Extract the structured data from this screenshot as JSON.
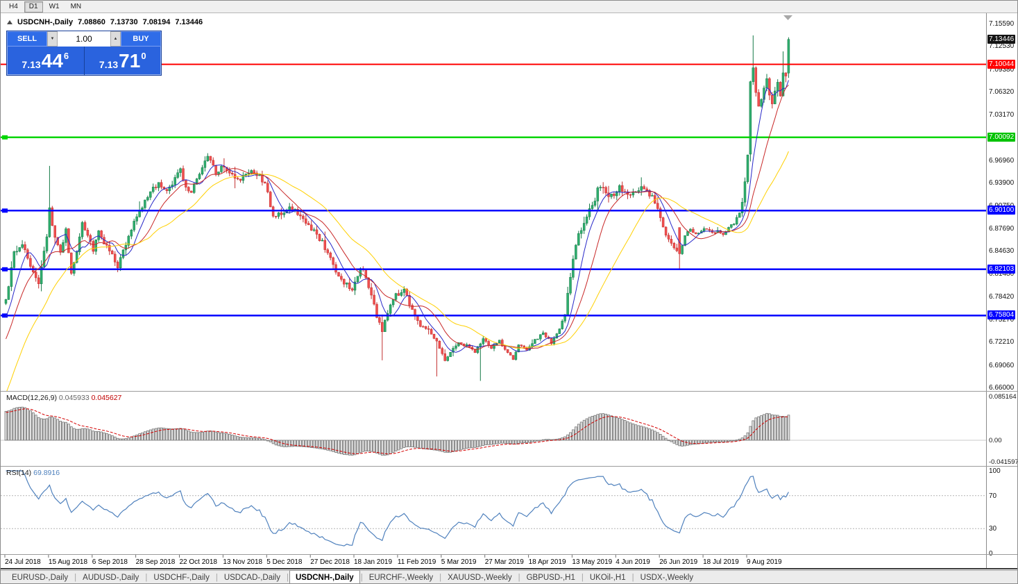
{
  "window_title": "USDCNH-,Daily",
  "toolbar": {
    "timeframes": [
      {
        "label": "H4",
        "active": false
      },
      {
        "label": "D1",
        "active": true
      },
      {
        "label": "W1",
        "active": false
      },
      {
        "label": "MN",
        "active": false
      }
    ]
  },
  "chart_header": {
    "symbol": "USDCNH-,Daily",
    "open": "7.08860",
    "high": "7.13730",
    "low": "7.08194",
    "close": "7.13446"
  },
  "trade_panel": {
    "sell_label": "SELL",
    "buy_label": "BUY",
    "volume": "1.00",
    "sell_price": {
      "prefix": "7.13",
      "big": "44",
      "sup": "6"
    },
    "buy_price": {
      "prefix": "7.13",
      "big": "71",
      "sup": "0"
    }
  },
  "indicators": {
    "macd": {
      "name": "MACD(12,26,9)",
      "value_main": "0.045933",
      "value_signal": "0.045627"
    },
    "rsi": {
      "name": "RSI(14)",
      "value": "69.8916"
    }
  },
  "price_scale": {
    "ticks": [
      "7.15590",
      "7.12530",
      "7.09380",
      "7.06320",
      "7.03170",
      "6.96960",
      "6.93900",
      "6.90750",
      "6.87690",
      "6.84630",
      "6.81480",
      "6.78420",
      "6.75270",
      "6.72210",
      "6.69060",
      "6.66000"
    ],
    "badges": [
      {
        "label": "7.13446",
        "bg": "#141414"
      },
      {
        "label": "7.10044",
        "bg": "#ff0000"
      },
      {
        "label": "7.00092",
        "bg": "#00c300"
      },
      {
        "label": "6.90100",
        "bg": "#0000ff"
      },
      {
        "label": "6.82103",
        "bg": "#0000ff"
      },
      {
        "label": "6.75804",
        "bg": "#0000ff"
      }
    ]
  },
  "macd_scale": {
    "ticks": [
      "0.085164",
      "0.00",
      "-0.041597"
    ]
  },
  "rsi_scale": {
    "ticks": [
      "100",
      "70",
      "30",
      "0"
    ]
  },
  "time_axis": {
    "labels": [
      "24 Jul 2018",
      "15 Aug 2018",
      "6 Sep 2018",
      "28 Sep 2018",
      "22 Oct 2018",
      "13 Nov 2018",
      "5 Dec 2018",
      "27 Dec 2018",
      "18 Jan 2019",
      "11 Feb 2019",
      "5 Mar 2019",
      "27 Mar 2019",
      "18 Apr 2019",
      "13 May 2019",
      "4 Jun 2019",
      "26 Jun 2019",
      "18 Jul 2019",
      "9 Aug 2019"
    ],
    "candles_per_label": 16
  },
  "tabs": [
    {
      "label": "EURUSD-,Daily",
      "active": false
    },
    {
      "label": "AUDUSD-,Daily",
      "active": false
    },
    {
      "label": "USDCHF-,Daily",
      "active": false
    },
    {
      "label": "USDCAD-,Daily",
      "active": false
    },
    {
      "label": "USDCNH-,Daily",
      "active": true
    },
    {
      "label": "EURCHF-,Weekly",
      "active": false
    },
    {
      "label": "XAUUSD-,Weekly",
      "active": false
    },
    {
      "label": "GBPUSD-,H1",
      "active": false
    },
    {
      "label": "UKOil-,H1",
      "active": false
    },
    {
      "label": "USDX-,Weekly",
      "active": false
    }
  ],
  "colors": {
    "bull": "#2fae6e",
    "bull_stroke": "#157a47",
    "bear": "#f04f4f",
    "bear_stroke": "#c22f2f",
    "macd_bar_fill": "#e2e2e2",
    "macd_bar_stroke": "#6e6e6e",
    "macd_signal": "#d40000",
    "macd_zero": "#c8c8c8",
    "rsi_line": "#4f81bd",
    "rsi_levels": "#b4b4b4",
    "panel_blue": "#2a63de"
  },
  "chart_data": {
    "type": "candlestick",
    "symbol": "USDCNH",
    "timeframe": "Daily",
    "title": "USDCNH-,Daily",
    "y_range": [
      6.66,
      7.1559
    ],
    "visible_candles": 288,
    "current_price": 7.13446,
    "current_ohlc": {
      "o": 7.0886,
      "h": 7.1373,
      "l": 7.08194,
      "c": 7.13446
    },
    "bid": 7.13446,
    "ask": 7.1371,
    "levels": [
      {
        "price": 7.10044,
        "color": "#ff0000",
        "width": 2,
        "marker": false
      },
      {
        "price": 7.00092,
        "color": "#00d500",
        "width": 2.5,
        "marker": true
      },
      {
        "price": 6.901,
        "color": "#0000ff",
        "width": 2.5,
        "marker": true
      },
      {
        "price": 6.82103,
        "color": "#0000ff",
        "width": 2.5,
        "marker": true
      },
      {
        "price": 6.75804,
        "color": "#0000ff",
        "width": 2.5,
        "marker": true
      }
    ],
    "ma": [
      {
        "period": 7,
        "color": "#2727c8"
      },
      {
        "period": 14,
        "color": "#c82727"
      },
      {
        "period": 30,
        "color": "#ffd000"
      }
    ],
    "macd": {
      "fast": 12,
      "slow": 26,
      "signal_period": 9,
      "current": 0.045933,
      "current_signal": 0.045627,
      "scale_max": 0.085164,
      "scale_min": -0.041597
    },
    "rsi": {
      "period": 14,
      "current": 69.8916,
      "levels": [
        70,
        30
      ]
    },
    "pre_history": [
      [
        -40,
        6.45
      ],
      [
        -28,
        6.52
      ],
      [
        -16,
        6.645
      ],
      [
        -8,
        6.715
      ],
      [
        -1,
        6.772
      ]
    ],
    "close_anchors": [
      [
        0,
        6.778
      ],
      [
        3,
        6.842
      ],
      [
        6,
        6.858
      ],
      [
        9,
        6.826
      ],
      [
        12,
        6.803
      ],
      [
        15,
        6.868
      ],
      [
        16,
        6.905
      ],
      [
        18,
        6.862
      ],
      [
        20,
        6.842
      ],
      [
        22,
        6.876
      ],
      [
        24,
        6.813
      ],
      [
        26,
        6.842
      ],
      [
        28,
        6.884
      ],
      [
        30,
        6.867
      ],
      [
        32,
        6.846
      ],
      [
        34,
        6.872
      ],
      [
        36,
        6.856
      ],
      [
        38,
        6.846
      ],
      [
        41,
        6.824
      ],
      [
        44,
        6.857
      ],
      [
        47,
        6.888
      ],
      [
        50,
        6.906
      ],
      [
        53,
        6.926
      ],
      [
        56,
        6.938
      ],
      [
        59,
        6.928
      ],
      [
        62,
        6.943
      ],
      [
        64,
        6.956
      ],
      [
        66,
        6.934
      ],
      [
        68,
        6.925
      ],
      [
        71,
        6.953
      ],
      [
        74,
        6.978
      ],
      [
        77,
        6.952
      ],
      [
        80,
        6.962
      ],
      [
        83,
        6.948
      ],
      [
        86,
        6.944
      ],
      [
        89,
        6.954
      ],
      [
        92,
        6.951
      ],
      [
        95,
        6.939
      ],
      [
        98,
        6.892
      ],
      [
        101,
        6.897
      ],
      [
        104,
        6.908
      ],
      [
        107,
        6.898
      ],
      [
        110,
        6.884
      ],
      [
        113,
        6.872
      ],
      [
        116,
        6.858
      ],
      [
        119,
        6.836
      ],
      [
        121,
        6.815
      ],
      [
        124,
        6.802
      ],
      [
        127,
        6.795
      ],
      [
        130,
        6.822
      ],
      [
        132,
        6.812
      ],
      [
        134,
        6.784
      ],
      [
        136,
        6.758
      ],
      [
        138,
        6.737
      ],
      [
        140,
        6.762
      ],
      [
        143,
        6.786
      ],
      [
        146,
        6.792
      ],
      [
        149,
        6.763
      ],
      [
        152,
        6.744
      ],
      [
        155,
        6.738
      ],
      [
        158,
        6.722
      ],
      [
        161,
        6.697
      ],
      [
        163,
        6.708
      ],
      [
        166,
        6.722
      ],
      [
        169,
        6.717
      ],
      [
        172,
        6.709
      ],
      [
        175,
        6.726
      ],
      [
        178,
        6.714
      ],
      [
        181,
        6.723
      ],
      [
        184,
        6.708
      ],
      [
        186,
        6.698
      ],
      [
        188,
        6.718
      ],
      [
        191,
        6.711
      ],
      [
        194,
        6.724
      ],
      [
        197,
        6.735
      ],
      [
        200,
        6.721
      ],
      [
        203,
        6.741
      ],
      [
        205,
        6.762
      ],
      [
        207,
        6.808
      ],
      [
        209,
        6.858
      ],
      [
        211,
        6.876
      ],
      [
        213,
        6.896
      ],
      [
        215,
        6.906
      ],
      [
        217,
        6.928
      ],
      [
        219,
        6.936
      ],
      [
        221,
        6.917
      ],
      [
        223,
        6.924
      ],
      [
        225,
        6.934
      ],
      [
        227,
        6.925
      ],
      [
        229,
        6.921
      ],
      [
        231,
        6.929
      ],
      [
        233,
        6.934
      ],
      [
        235,
        6.926
      ],
      [
        237,
        6.921
      ],
      [
        239,
        6.904
      ],
      [
        241,
        6.878
      ],
      [
        243,
        6.861
      ],
      [
        245,
        6.852
      ],
      [
        247,
        6.842
      ],
      [
        249,
        6.868
      ],
      [
        251,
        6.876
      ],
      [
        253,
        6.869
      ],
      [
        255,
        6.874
      ],
      [
        257,
        6.877
      ],
      [
        259,
        6.871
      ],
      [
        261,
        6.874
      ],
      [
        263,
        6.869
      ],
      [
        265,
        6.877
      ],
      [
        267,
        6.884
      ],
      [
        269,
        6.898
      ],
      [
        270,
        6.912
      ],
      [
        271,
        6.938
      ],
      [
        272,
        6.975
      ],
      [
        273,
        7.08
      ],
      [
        274,
        7.096
      ],
      [
        275,
        7.058
      ],
      [
        276,
        7.046
      ],
      [
        277,
        7.052
      ],
      [
        278,
        7.068
      ],
      [
        279,
        7.085
      ],
      [
        280,
        7.06
      ],
      [
        281,
        7.048
      ],
      [
        282,
        7.062
      ],
      [
        283,
        7.078
      ],
      [
        284,
        7.058
      ],
      [
        285,
        7.09
      ],
      [
        286,
        7.088
      ],
      [
        287,
        7.13446
      ]
    ],
    "overrides": [
      {
        "i": 16,
        "h": 6.962
      },
      {
        "i": 138,
        "l": 6.697
      },
      {
        "i": 158,
        "l": 6.675
      },
      {
        "i": 174,
        "l": 6.669
      },
      {
        "i": 247,
        "o": 6.878,
        "l": 6.822
      },
      {
        "i": 273,
        "o": 6.978,
        "l": 6.968
      },
      {
        "i": 274,
        "h": 7.1398
      },
      {
        "i": 285,
        "h": 7.118
      },
      {
        "i": 287,
        "o": 7.0886,
        "h": 7.1373,
        "l": 7.08194,
        "c": 7.13446
      }
    ]
  }
}
